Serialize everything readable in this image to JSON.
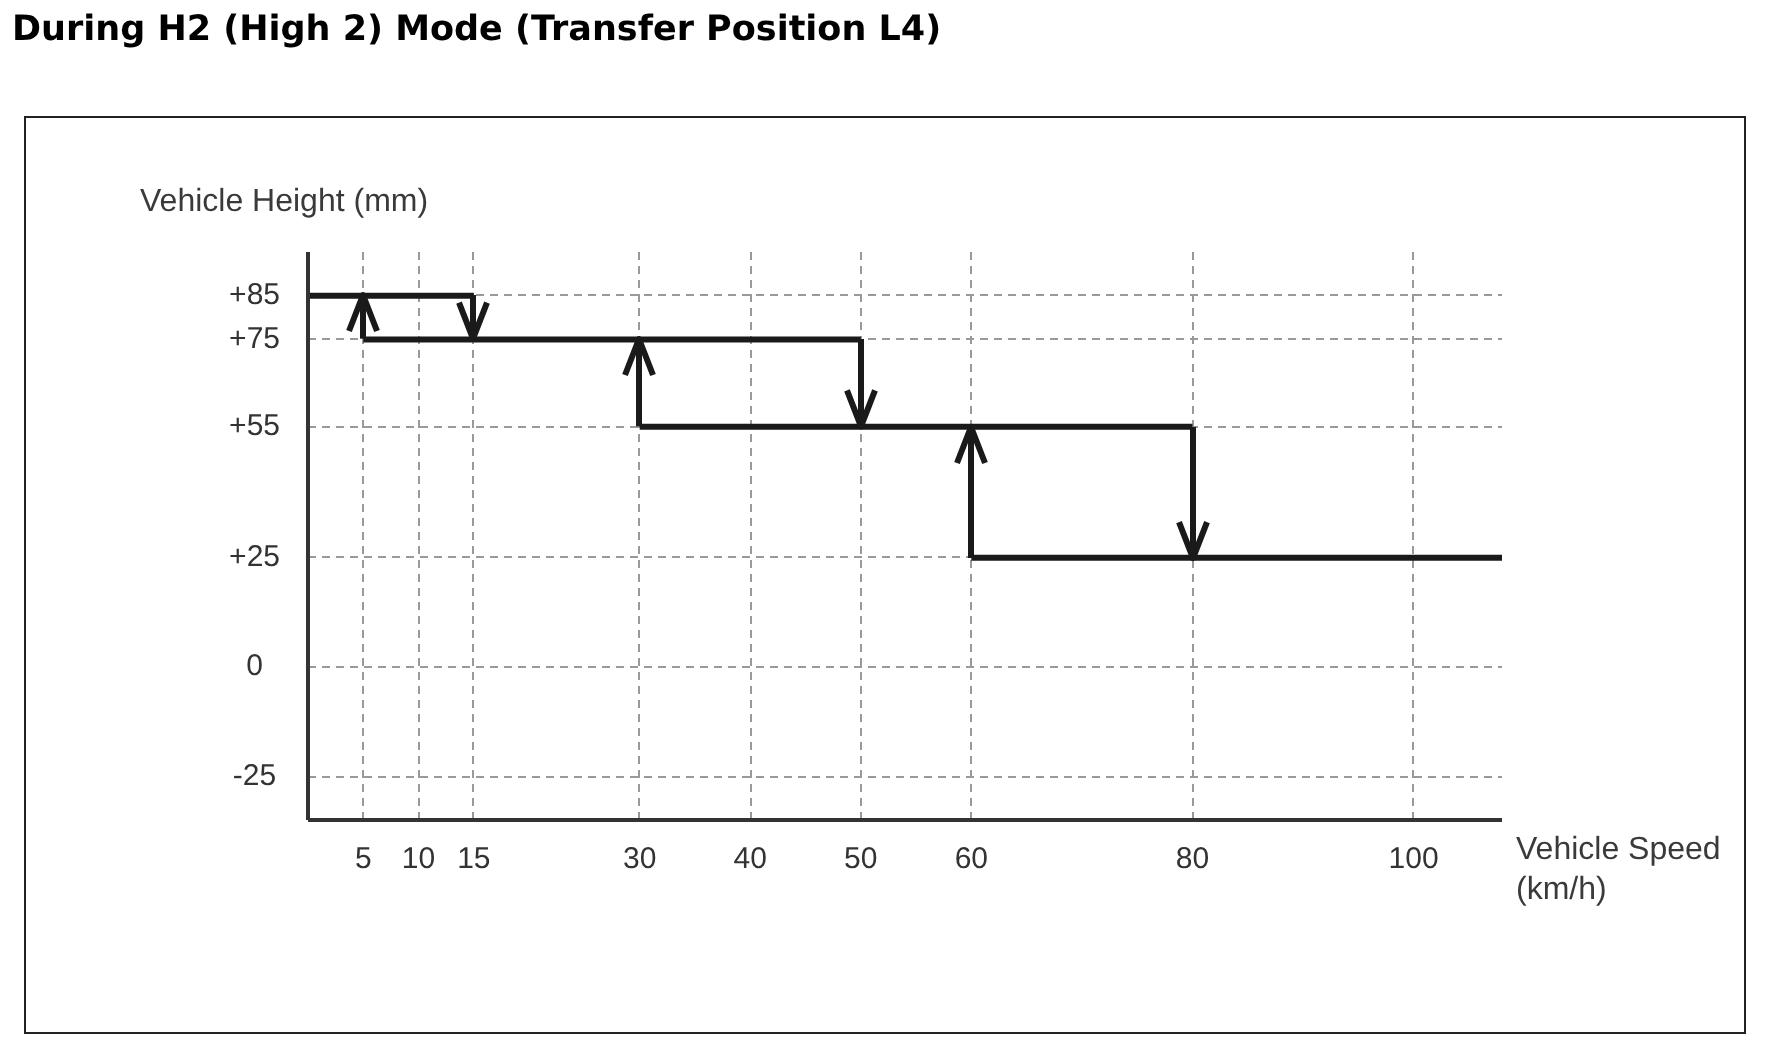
{
  "chart_data": {
    "type": "line",
    "title": "During H2 (High 2) Mode (Transfer Position L4)",
    "xlabel": "Vehicle Speed (km/h)",
    "ylabel": "Vehicle Height (mm)",
    "series": [
      {
        "color": "#1a1a1a",
        "x": [
          0,
          15
        ],
        "values": [
          85,
          85
        ]
      },
      {
        "color": "#1a1a1a",
        "x": [
          5,
          50
        ],
        "values": [
          75,
          75
        ]
      },
      {
        "color": "#1a1a1a",
        "x": [
          30,
          80
        ],
        "values": [
          55,
          55
        ]
      },
      {
        "color": "#1a1a1a",
        "x": [
          60,
          108
        ],
        "values": [
          25,
          25
        ]
      }
    ],
    "xlim": [
      0,
      108
    ],
    "xticks": [
      5,
      10,
      15,
      30,
      40,
      50,
      60,
      80,
      100
    ],
    "ylim": [
      -35,
      95
    ],
    "yticks": [
      {
        "value": 85,
        "label": "+85"
      },
      {
        "value": 75,
        "label": "+75"
      },
      {
        "value": 55,
        "label": "+55"
      },
      {
        "value": 25,
        "label": "+25"
      },
      0,
      -25
    ],
    "grid": true,
    "legend": false,
    "marker": "none",
    "line_style": "solid"
  }
}
